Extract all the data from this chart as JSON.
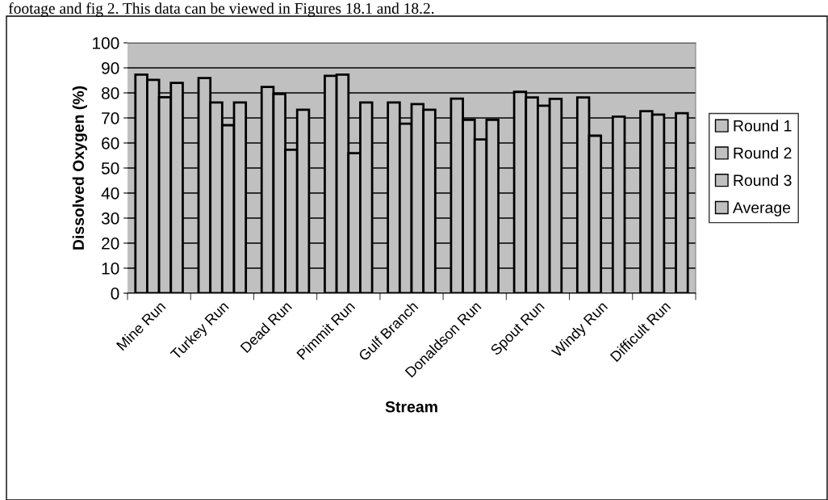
{
  "chart_data": {
    "type": "bar",
    "xlabel": "Stream",
    "ylabel": "Dissolved Oxygen (%)",
    "annotations": [
      "footage and fig 2. This data can be viewed in Figures 18.1 and 18.2."
    ],
    "categories": [
      "Mine Run",
      "Turkey Run",
      "Dead Run",
      "Pimmit Run",
      "Gulf Branch",
      "Donaldson Run",
      "Spout Run",
      "Windy Run",
      "Difficult Run"
    ],
    "series": [
      {
        "name": "Round 1",
        "color": "#c0c0c0",
        "values": [
          87.3,
          85.9,
          82.4,
          86.8,
          76.2,
          77.7,
          80.4,
          78.2,
          72.7
        ]
      },
      {
        "name": "Round 2",
        "color": "#c0c0c0",
        "values": [
          85.2,
          76.2,
          79.6,
          87.3,
          67.7,
          69.2,
          78.2,
          62.9,
          71.3
        ]
      },
      {
        "name": "Round 3",
        "color": "#c0c0c0",
        "values": [
          78.3,
          67.1,
          57.3,
          55.9,
          75.5,
          61.4,
          74.9,
          null,
          null
        ]
      },
      {
        "name": "Average",
        "color": "#c0c0c0",
        "values": [
          84.0,
          76.2,
          73.3,
          76.2,
          73.3,
          69.2,
          77.6,
          70.5,
          71.9
        ]
      }
    ],
    "ylim": [
      0,
      100
    ],
    "yticks": [
      0,
      10,
      20,
      30,
      40,
      50,
      60,
      70,
      80,
      90,
      100
    ],
    "grid": "y",
    "legend": "right"
  }
}
